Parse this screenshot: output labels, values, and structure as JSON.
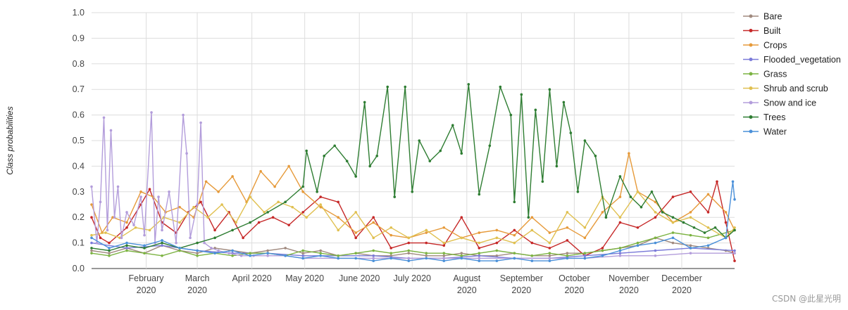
{
  "chart_data": {
    "type": "line",
    "title": "",
    "xlabel": "",
    "ylabel": "Class probabilities",
    "ylim": [
      0,
      1
    ],
    "yticks": [
      "0.0",
      "0.1",
      "0.2",
      "0.3",
      "0.4",
      "0.5",
      "0.6",
      "0.7",
      "0.8",
      "0.9",
      "1.0"
    ],
    "xlim_days": [
      0,
      365
    ],
    "xticks": [
      {
        "day": 31,
        "line1": "February",
        "line2": "2020"
      },
      {
        "day": 60,
        "line1": "March",
        "line2": "2020"
      },
      {
        "day": 91,
        "line1": "April 2020",
        "line2": ""
      },
      {
        "day": 121,
        "line1": "May 2020",
        "line2": ""
      },
      {
        "day": 152,
        "line1": "June 2020",
        "line2": ""
      },
      {
        "day": 182,
        "line1": "July 2020",
        "line2": ""
      },
      {
        "day": 213,
        "line1": "August",
        "line2": "2020"
      },
      {
        "day": 244,
        "line1": "September",
        "line2": "2020"
      },
      {
        "day": 274,
        "line1": "October",
        "line2": "2020"
      },
      {
        "day": 305,
        "line1": "November",
        "line2": "2020"
      },
      {
        "day": 335,
        "line1": "December",
        "line2": "2020"
      }
    ],
    "legend_position": "right",
    "series": [
      {
        "name": "Bare",
        "color": "#a08a7f",
        "x": [
          0,
          10,
          20,
          30,
          40,
          50,
          60,
          70,
          80,
          90,
          100,
          110,
          120,
          130,
          140,
          150,
          160,
          170,
          180,
          190,
          200,
          210,
          220,
          230,
          240,
          250,
          260,
          270,
          280,
          290,
          300,
          310,
          320,
          330,
          340,
          350,
          360,
          365
        ],
        "values": [
          0.07,
          0.06,
          0.08,
          0.06,
          0.09,
          0.07,
          0.06,
          0.08,
          0.07,
          0.06,
          0.07,
          0.08,
          0.06,
          0.07,
          0.05,
          0.06,
          0.05,
          0.05,
          0.06,
          0.05,
          0.05,
          0.06,
          0.05,
          0.05,
          0.06,
          0.05,
          0.05,
          0.06,
          0.06,
          0.07,
          0.08,
          0.09,
          0.12,
          0.1,
          0.09,
          0.08,
          0.07,
          0.06
        ]
      },
      {
        "name": "Built",
        "color": "#c62828",
        "x": [
          0,
          5,
          10,
          20,
          28,
          33,
          40,
          48,
          55,
          62,
          70,
          78,
          86,
          95,
          103,
          112,
          120,
          130,
          140,
          150,
          160,
          170,
          180,
          190,
          200,
          210,
          220,
          230,
          240,
          250,
          260,
          270,
          280,
          290,
          300,
          310,
          320,
          330,
          340,
          350,
          355,
          360,
          365
        ],
        "values": [
          0.2,
          0.12,
          0.1,
          0.16,
          0.25,
          0.31,
          0.18,
          0.14,
          0.22,
          0.26,
          0.15,
          0.22,
          0.12,
          0.18,
          0.2,
          0.17,
          0.22,
          0.28,
          0.26,
          0.12,
          0.2,
          0.08,
          0.1,
          0.1,
          0.09,
          0.2,
          0.08,
          0.1,
          0.15,
          0.1,
          0.08,
          0.11,
          0.05,
          0.08,
          0.18,
          0.16,
          0.2,
          0.28,
          0.3,
          0.22,
          0.34,
          0.18,
          0.03
        ]
      },
      {
        "name": "Crops",
        "color": "#e69a3a",
        "x": [
          0,
          6,
          12,
          20,
          28,
          35,
          42,
          50,
          58,
          65,
          72,
          80,
          88,
          96,
          104,
          112,
          120,
          130,
          140,
          150,
          160,
          170,
          180,
          190,
          200,
          210,
          220,
          230,
          240,
          250,
          260,
          270,
          280,
          290,
          300,
          305,
          310,
          320,
          330,
          340,
          350,
          360,
          365
        ],
        "values": [
          0.25,
          0.14,
          0.2,
          0.18,
          0.3,
          0.28,
          0.22,
          0.24,
          0.2,
          0.34,
          0.3,
          0.36,
          0.26,
          0.38,
          0.32,
          0.4,
          0.3,
          0.24,
          0.2,
          0.14,
          0.18,
          0.13,
          0.12,
          0.14,
          0.16,
          0.12,
          0.14,
          0.15,
          0.13,
          0.2,
          0.14,
          0.16,
          0.12,
          0.22,
          0.28,
          0.45,
          0.3,
          0.26,
          0.18,
          0.22,
          0.29,
          0.22,
          0.15
        ]
      },
      {
        "name": "Flooded_vegetation",
        "color": "#7b7bd9",
        "x": [
          0,
          20,
          40,
          60,
          80,
          100,
          120,
          140,
          160,
          180,
          200,
          220,
          240,
          260,
          280,
          300,
          320,
          340,
          365
        ],
        "values": [
          0.1,
          0.08,
          0.09,
          0.07,
          0.06,
          0.06,
          0.05,
          0.05,
          0.05,
          0.04,
          0.04,
          0.05,
          0.04,
          0.04,
          0.05,
          0.06,
          0.07,
          0.08,
          0.07
        ]
      },
      {
        "name": "Grass",
        "color": "#7cb342",
        "x": [
          0,
          10,
          20,
          30,
          40,
          50,
          60,
          70,
          80,
          90,
          100,
          110,
          120,
          130,
          140,
          150,
          160,
          170,
          180,
          190,
          200,
          210,
          220,
          230,
          240,
          250,
          260,
          270,
          280,
          290,
          300,
          310,
          320,
          330,
          340,
          350,
          365
        ],
        "values": [
          0.06,
          0.05,
          0.07,
          0.06,
          0.05,
          0.07,
          0.05,
          0.06,
          0.05,
          0.06,
          0.06,
          0.05,
          0.07,
          0.06,
          0.05,
          0.06,
          0.07,
          0.06,
          0.07,
          0.06,
          0.06,
          0.05,
          0.06,
          0.07,
          0.06,
          0.05,
          0.06,
          0.05,
          0.06,
          0.07,
          0.08,
          0.1,
          0.12,
          0.14,
          0.13,
          0.12,
          0.15
        ]
      },
      {
        "name": "Shrub and scrub",
        "color": "#e0c050",
        "x": [
          0,
          8,
          16,
          25,
          33,
          41,
          50,
          58,
          66,
          74,
          82,
          90,
          98,
          106,
          114,
          122,
          130,
          140,
          150,
          160,
          170,
          180,
          190,
          200,
          210,
          220,
          230,
          240,
          250,
          260,
          270,
          280,
          290,
          300,
          310,
          320,
          330,
          340,
          350,
          360,
          365
        ],
        "values": [
          0.13,
          0.14,
          0.12,
          0.16,
          0.15,
          0.2,
          0.18,
          0.24,
          0.2,
          0.25,
          0.18,
          0.28,
          0.22,
          0.26,
          0.24,
          0.2,
          0.25,
          0.15,
          0.22,
          0.12,
          0.16,
          0.12,
          0.15,
          0.1,
          0.12,
          0.1,
          0.12,
          0.1,
          0.15,
          0.1,
          0.22,
          0.16,
          0.28,
          0.2,
          0.3,
          0.22,
          0.18,
          0.2,
          0.16,
          0.12,
          0.16
        ]
      },
      {
        "name": "Snow and ice",
        "color": "#b39ddb",
        "x": [
          0,
          3,
          5,
          7,
          9,
          11,
          13,
          15,
          17,
          20,
          24,
          28,
          30,
          34,
          36,
          38,
          40,
          44,
          48,
          52,
          54,
          56,
          60,
          62,
          64,
          68,
          72,
          78,
          85,
          92,
          100,
          110,
          120,
          140,
          160,
          180,
          200,
          220,
          240,
          260,
          280,
          300,
          320,
          340,
          365
        ],
        "values": [
          0.32,
          0.1,
          0.26,
          0.59,
          0.15,
          0.54,
          0.2,
          0.32,
          0.12,
          0.22,
          0.17,
          0.28,
          0.13,
          0.61,
          0.1,
          0.28,
          0.15,
          0.3,
          0.1,
          0.6,
          0.45,
          0.12,
          0.25,
          0.57,
          0.1,
          0.08,
          0.07,
          0.06,
          0.05,
          0.05,
          0.05,
          0.05,
          0.04,
          0.04,
          0.04,
          0.04,
          0.04,
          0.04,
          0.04,
          0.04,
          0.04,
          0.05,
          0.05,
          0.06,
          0.06
        ]
      },
      {
        "name": "Trees",
        "color": "#2e7d32",
        "x": [
          0,
          10,
          20,
          30,
          40,
          50,
          60,
          70,
          80,
          90,
          100,
          110,
          120,
          122,
          128,
          132,
          138,
          145,
          150,
          155,
          158,
          162,
          168,
          172,
          178,
          182,
          186,
          192,
          198,
          205,
          210,
          214,
          220,
          226,
          232,
          238,
          240,
          244,
          248,
          252,
          256,
          260,
          264,
          268,
          272,
          276,
          280,
          286,
          292,
          300,
          306,
          312,
          318,
          324,
          330,
          336,
          342,
          348,
          354,
          360,
          365
        ],
        "values": [
          0.08,
          0.07,
          0.09,
          0.08,
          0.1,
          0.08,
          0.1,
          0.12,
          0.15,
          0.18,
          0.22,
          0.26,
          0.32,
          0.46,
          0.3,
          0.44,
          0.48,
          0.42,
          0.36,
          0.65,
          0.4,
          0.44,
          0.71,
          0.28,
          0.71,
          0.3,
          0.5,
          0.42,
          0.46,
          0.56,
          0.45,
          0.72,
          0.29,
          0.48,
          0.71,
          0.6,
          0.26,
          0.68,
          0.2,
          0.62,
          0.34,
          0.7,
          0.4,
          0.65,
          0.53,
          0.3,
          0.5,
          0.44,
          0.2,
          0.36,
          0.28,
          0.24,
          0.3,
          0.22,
          0.2,
          0.18,
          0.16,
          0.14,
          0.16,
          0.12,
          0.15
        ]
      },
      {
        "name": "Water",
        "color": "#4a90d9",
        "x": [
          0,
          10,
          20,
          30,
          40,
          50,
          60,
          70,
          80,
          90,
          100,
          110,
          120,
          130,
          140,
          150,
          160,
          170,
          180,
          190,
          200,
          210,
          220,
          230,
          240,
          250,
          260,
          270,
          280,
          290,
          300,
          310,
          320,
          330,
          340,
          350,
          360,
          364,
          365
        ],
        "values": [
          0.12,
          0.08,
          0.1,
          0.09,
          0.11,
          0.08,
          0.07,
          0.06,
          0.07,
          0.05,
          0.06,
          0.05,
          0.04,
          0.05,
          0.04,
          0.04,
          0.03,
          0.04,
          0.03,
          0.04,
          0.03,
          0.04,
          0.03,
          0.03,
          0.04,
          0.03,
          0.03,
          0.04,
          0.04,
          0.05,
          0.07,
          0.09,
          0.1,
          0.12,
          0.08,
          0.09,
          0.12,
          0.34,
          0.27
        ]
      }
    ]
  },
  "watermark": "CSDN @此星光明"
}
